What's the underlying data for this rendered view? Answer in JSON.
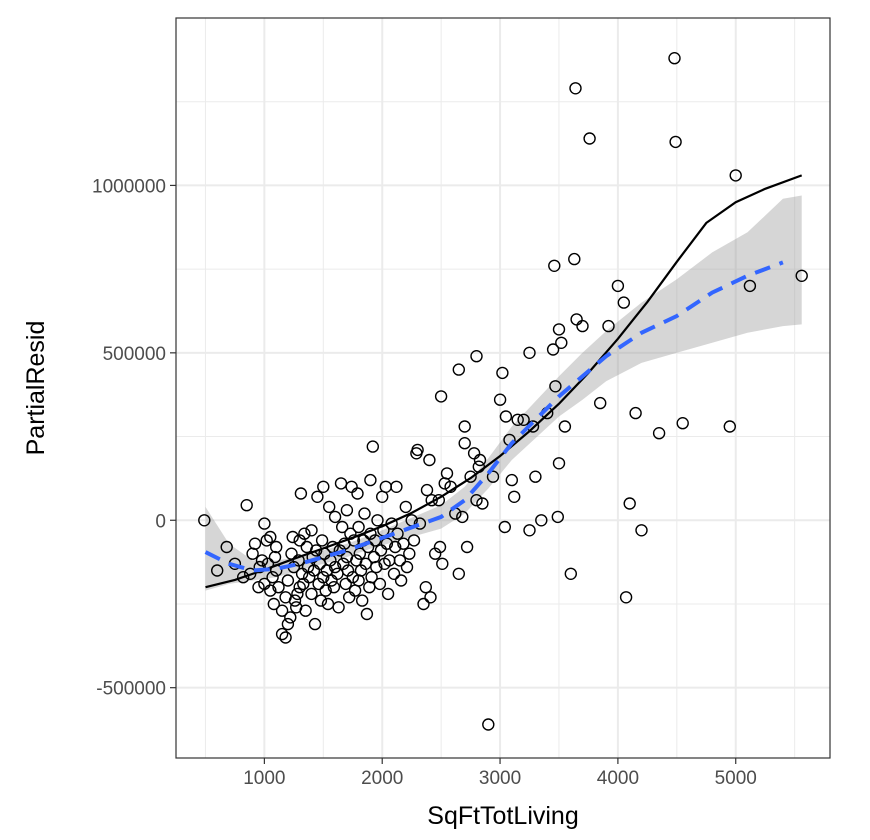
{
  "chart_data": {
    "type": "scatter",
    "title": "",
    "xlabel": "SqFtTotLiving",
    "ylabel": "PartialResid",
    "xlim": [
      250,
      5800
    ],
    "ylim": [
      -710000,
      1500000
    ],
    "x_ticks": [
      1000,
      2000,
      3000,
      4000,
      5000
    ],
    "x_tick_labels": [
      "1000",
      "2000",
      "3000",
      "4000",
      "5000"
    ],
    "y_ticks": [
      -500000,
      0,
      500000,
      1000000
    ],
    "y_tick_labels": [
      "-500000",
      "0",
      "500000",
      "1000000"
    ],
    "grid": true,
    "legend": "none",
    "colors": {
      "points": "#000000",
      "fit_line": "#000000",
      "smooth_line": "#3366FF",
      "ribbon": "#999999",
      "grid": "#ebebeb",
      "panel_border": "#333333"
    },
    "series": [
      {
        "type": "scatter",
        "points": [
          [
            490,
            0
          ],
          [
            600,
            -150000
          ],
          [
            680,
            -80000
          ],
          [
            750,
            -130000
          ],
          [
            820,
            -170000
          ],
          [
            850,
            45000
          ],
          [
            880,
            -160000
          ],
          [
            900,
            -100000
          ],
          [
            920,
            -70000
          ],
          [
            950,
            -200000
          ],
          [
            960,
            -140000
          ],
          [
            980,
            -120000
          ],
          [
            1000,
            -10000
          ],
          [
            1000,
            -190000
          ],
          [
            1020,
            -60000
          ],
          [
            1030,
            -130000
          ],
          [
            1050,
            -210000
          ],
          [
            1050,
            -50000
          ],
          [
            1070,
            -170000
          ],
          [
            1080,
            -250000
          ],
          [
            1090,
            -110000
          ],
          [
            1100,
            -150000
          ],
          [
            1100,
            -80000
          ],
          [
            1120,
            -200000
          ],
          [
            1150,
            -340000
          ],
          [
            1150,
            -270000
          ],
          [
            1180,
            -350000
          ],
          [
            1180,
            -230000
          ],
          [
            1200,
            -310000
          ],
          [
            1200,
            -180000
          ],
          [
            1220,
            -290000
          ],
          [
            1230,
            -100000
          ],
          [
            1240,
            -50000
          ],
          [
            1250,
            -140000
          ],
          [
            1260,
            -240000
          ],
          [
            1270,
            -260000
          ],
          [
            1280,
            -220000
          ],
          [
            1290,
            -120000
          ],
          [
            1300,
            -60000
          ],
          [
            1300,
            -200000
          ],
          [
            1310,
            80000
          ],
          [
            1320,
            -160000
          ],
          [
            1330,
            -190000
          ],
          [
            1340,
            -40000
          ],
          [
            1350,
            -270000
          ],
          [
            1360,
            -80000
          ],
          [
            1370,
            -140000
          ],
          [
            1380,
            -170000
          ],
          [
            1400,
            -30000
          ],
          [
            1400,
            -220000
          ],
          [
            1410,
            -110000
          ],
          [
            1420,
            -150000
          ],
          [
            1430,
            -310000
          ],
          [
            1440,
            -90000
          ],
          [
            1450,
            70000
          ],
          [
            1460,
            -190000
          ],
          [
            1470,
            -130000
          ],
          [
            1480,
            -240000
          ],
          [
            1490,
            -60000
          ],
          [
            1500,
            -170000
          ],
          [
            1500,
            100000
          ],
          [
            1510,
            -100000
          ],
          [
            1520,
            -210000
          ],
          [
            1530,
            -150000
          ],
          [
            1540,
            -250000
          ],
          [
            1550,
            40000
          ],
          [
            1560,
            -120000
          ],
          [
            1570,
            -180000
          ],
          [
            1580,
            -80000
          ],
          [
            1590,
            -200000
          ],
          [
            1600,
            10000
          ],
          [
            1600,
            -140000
          ],
          [
            1620,
            -160000
          ],
          [
            1630,
            -260000
          ],
          [
            1640,
            -90000
          ],
          [
            1650,
            110000
          ],
          [
            1660,
            -20000
          ],
          [
            1670,
            -130000
          ],
          [
            1680,
            -70000
          ],
          [
            1690,
            -190000
          ],
          [
            1700,
            30000
          ],
          [
            1700,
            -110000
          ],
          [
            1710,
            -150000
          ],
          [
            1720,
            -230000
          ],
          [
            1730,
            -40000
          ],
          [
            1740,
            100000
          ],
          [
            1750,
            -170000
          ],
          [
            1760,
            -60000
          ],
          [
            1770,
            -210000
          ],
          [
            1780,
            -120000
          ],
          [
            1790,
            80000
          ],
          [
            1800,
            -180000
          ],
          [
            1800,
            -20000
          ],
          [
            1810,
            -100000
          ],
          [
            1820,
            -150000
          ],
          [
            1830,
            -240000
          ],
          [
            1840,
            -60000
          ],
          [
            1850,
            20000
          ],
          [
            1860,
            -130000
          ],
          [
            1870,
            -280000
          ],
          [
            1880,
            -80000
          ],
          [
            1890,
            -200000
          ],
          [
            1900,
            120000
          ],
          [
            1900,
            -40000
          ],
          [
            1910,
            -170000
          ],
          [
            1920,
            220000
          ],
          [
            1930,
            -110000
          ],
          [
            1940,
            -60000
          ],
          [
            1950,
            -140000
          ],
          [
            1960,
            0
          ],
          [
            1980,
            -190000
          ],
          [
            1990,
            -90000
          ],
          [
            2000,
            70000
          ],
          [
            2010,
            -30000
          ],
          [
            2020,
            -130000
          ],
          [
            2030,
            100000
          ],
          [
            2040,
            -70000
          ],
          [
            2050,
            -220000
          ],
          [
            2060,
            -120000
          ],
          [
            2080,
            -10000
          ],
          [
            2100,
            -160000
          ],
          [
            2110,
            -80000
          ],
          [
            2120,
            100000
          ],
          [
            2130,
            -40000
          ],
          [
            2150,
            -120000
          ],
          [
            2160,
            -180000
          ],
          [
            2180,
            -70000
          ],
          [
            2200,
            40000
          ],
          [
            2210,
            -140000
          ],
          [
            2230,
            -100000
          ],
          [
            2250,
            0
          ],
          [
            2270,
            -60000
          ],
          [
            2290,
            200000
          ],
          [
            2300,
            210000
          ],
          [
            2320,
            -10000
          ],
          [
            2350,
            -250000
          ],
          [
            2370,
            -200000
          ],
          [
            2380,
            90000
          ],
          [
            2400,
            180000
          ],
          [
            2410,
            -230000
          ],
          [
            2420,
            60000
          ],
          [
            2450,
            -100000
          ],
          [
            2480,
            60000
          ],
          [
            2490,
            -80000
          ],
          [
            2500,
            370000
          ],
          [
            2510,
            -130000
          ],
          [
            2530,
            110000
          ],
          [
            2550,
            140000
          ],
          [
            2580,
            100000
          ],
          [
            2620,
            20000
          ],
          [
            2650,
            450000
          ],
          [
            2650,
            -160000
          ],
          [
            2680,
            10000
          ],
          [
            2700,
            280000
          ],
          [
            2700,
            230000
          ],
          [
            2720,
            -80000
          ],
          [
            2750,
            130000
          ],
          [
            2780,
            200000
          ],
          [
            2800,
            60000
          ],
          [
            2800,
            490000
          ],
          [
            2820,
            160000
          ],
          [
            2830,
            180000
          ],
          [
            2850,
            50000
          ],
          [
            2900,
            -610000
          ],
          [
            2940,
            130000
          ],
          [
            3000,
            360000
          ],
          [
            3020,
            440000
          ],
          [
            3040,
            -20000
          ],
          [
            3050,
            310000
          ],
          [
            3080,
            240000
          ],
          [
            3100,
            120000
          ],
          [
            3120,
            70000
          ],
          [
            3150,
            300000
          ],
          [
            3200,
            300000
          ],
          [
            3250,
            500000
          ],
          [
            3250,
            -30000
          ],
          [
            3280,
            280000
          ],
          [
            3300,
            130000
          ],
          [
            3350,
            0
          ],
          [
            3400,
            320000
          ],
          [
            3450,
            510000
          ],
          [
            3460,
            760000
          ],
          [
            3470,
            400000
          ],
          [
            3490,
            10000
          ],
          [
            3500,
            170000
          ],
          [
            3500,
            570000
          ],
          [
            3520,
            530000
          ],
          [
            3550,
            280000
          ],
          [
            3600,
            -160000
          ],
          [
            3630,
            780000
          ],
          [
            3640,
            1290000
          ],
          [
            3650,
            600000
          ],
          [
            3700,
            580000
          ],
          [
            3760,
            1140000
          ],
          [
            3850,
            350000
          ],
          [
            3920,
            580000
          ],
          [
            4000,
            700000
          ],
          [
            4050,
            650000
          ],
          [
            4070,
            -230000
          ],
          [
            4100,
            50000
          ],
          [
            4150,
            320000
          ],
          [
            4200,
            -30000
          ],
          [
            4350,
            260000
          ],
          [
            4480,
            1380000
          ],
          [
            4490,
            1130000
          ],
          [
            4550,
            290000
          ],
          [
            4950,
            280000
          ],
          [
            5000,
            1030000
          ],
          [
            5120,
            700000
          ],
          [
            5560,
            730000
          ]
        ]
      },
      {
        "type": "line",
        "points": [
          [
            500,
            -200000
          ],
          [
            750,
            -178000
          ],
          [
            1000,
            -148000
          ],
          [
            1250,
            -115000
          ],
          [
            1500,
            -84000
          ],
          [
            1750,
            -52000
          ],
          [
            2000,
            -18000
          ],
          [
            2250,
            22000
          ],
          [
            2500,
            70000
          ],
          [
            2750,
            126000
          ],
          [
            3000,
            192000
          ],
          [
            3250,
            266000
          ],
          [
            3500,
            348000
          ],
          [
            3750,
            440000
          ],
          [
            4000,
            542000
          ],
          [
            4250,
            652000
          ],
          [
            4500,
            772000
          ],
          [
            4750,
            888000
          ],
          [
            5000,
            950000
          ],
          [
            5250,
            990000
          ],
          [
            5560,
            1030000
          ]
        ]
      },
      {
        "type": "line",
        "style": "dashed",
        "points": [
          [
            500,
            -95000
          ],
          [
            700,
            -130000
          ],
          [
            900,
            -150000
          ],
          [
            1100,
            -145000
          ],
          [
            1300,
            -130000
          ],
          [
            1500,
            -110000
          ],
          [
            1700,
            -90000
          ],
          [
            1900,
            -65000
          ],
          [
            2100,
            -40000
          ],
          [
            2300,
            -15000
          ],
          [
            2500,
            10000
          ],
          [
            2700,
            60000
          ],
          [
            2900,
            140000
          ],
          [
            3100,
            230000
          ],
          [
            3300,
            300000
          ],
          [
            3500,
            370000
          ],
          [
            3700,
            430000
          ],
          [
            3900,
            490000
          ],
          [
            4200,
            560000
          ],
          [
            4500,
            610000
          ],
          [
            4800,
            680000
          ],
          [
            5100,
            730000
          ],
          [
            5400,
            770000
          ]
        ]
      },
      {
        "type": "area",
        "upper": [
          [
            500,
            40000
          ],
          [
            700,
            -70000
          ],
          [
            900,
            -120000
          ],
          [
            1100,
            -120000
          ],
          [
            1300,
            -110000
          ],
          [
            1500,
            -90000
          ],
          [
            1700,
            -70000
          ],
          [
            1900,
            -45000
          ],
          [
            2100,
            -15000
          ],
          [
            2300,
            15000
          ],
          [
            2500,
            45000
          ],
          [
            2700,
            100000
          ],
          [
            2900,
            185000
          ],
          [
            3100,
            280000
          ],
          [
            3300,
            355000
          ],
          [
            3500,
            430000
          ],
          [
            3700,
            500000
          ],
          [
            3900,
            565000
          ],
          [
            4200,
            650000
          ],
          [
            4500,
            720000
          ],
          [
            4800,
            800000
          ],
          [
            5100,
            860000
          ],
          [
            5400,
            960000
          ],
          [
            5560,
            970000
          ]
        ],
        "lower": [
          [
            500,
            -210000
          ],
          [
            700,
            -190000
          ],
          [
            900,
            -180000
          ],
          [
            1100,
            -170000
          ],
          [
            1300,
            -150000
          ],
          [
            1500,
            -130000
          ],
          [
            1700,
            -110000
          ],
          [
            1900,
            -85000
          ],
          [
            2100,
            -65000
          ],
          [
            2300,
            -45000
          ],
          [
            2500,
            -25000
          ],
          [
            2700,
            20000
          ],
          [
            2900,
            95000
          ],
          [
            3100,
            180000
          ],
          [
            3300,
            245000
          ],
          [
            3500,
            310000
          ],
          [
            3700,
            360000
          ],
          [
            3900,
            415000
          ],
          [
            4200,
            470000
          ],
          [
            4500,
            500000
          ],
          [
            4800,
            530000
          ],
          [
            5100,
            560000
          ],
          [
            5400,
            580000
          ],
          [
            5560,
            585000
          ]
        ]
      }
    ]
  }
}
